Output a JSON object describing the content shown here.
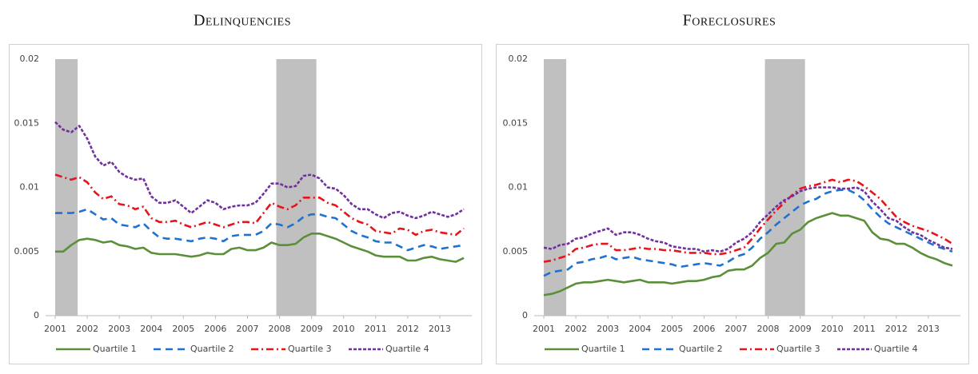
{
  "chart_data": [
    {
      "type": "line",
      "title": "Delinquencies",
      "x": [
        2001,
        2001.25,
        2001.5,
        2001.75,
        2002,
        2002.25,
        2002.5,
        2002.75,
        2003,
        2003.25,
        2003.5,
        2003.75,
        2004,
        2004.25,
        2004.5,
        2004.75,
        2005,
        2005.25,
        2005.5,
        2005.75,
        2006,
        2006.25,
        2006.5,
        2006.75,
        2007,
        2007.25,
        2007.5,
        2007.75,
        2008,
        2008.25,
        2008.5,
        2008.75,
        2009,
        2009.25,
        2009.5,
        2009.75,
        2010,
        2010.25,
        2010.5,
        2010.75,
        2011,
        2011.25,
        2011.5,
        2011.75,
        2012,
        2012.25,
        2012.5,
        2012.75,
        2013,
        2013.25,
        2013.5,
        2013.75
      ],
      "xlim": [
        2000.7,
        2014
      ],
      "xticks": [
        2001,
        2002,
        2003,
        2004,
        2005,
        2006,
        2007,
        2008,
        2009,
        2010,
        2011,
        2012,
        2013
      ],
      "ylim": [
        0,
        0.02
      ],
      "yticks": [
        0,
        0.005,
        0.01,
        0.015,
        0.02
      ],
      "grid": false,
      "recessions": [
        [
          2001,
          2001.7
        ],
        [
          2007.9,
          2009.15
        ]
      ],
      "recession_color": "#c0c0c0",
      "series": [
        {
          "name": "Quartile 1",
          "color": "#5b8f3a",
          "values": [
            0.005,
            0.005,
            0.0055,
            0.0059,
            0.006,
            0.0059,
            0.0057,
            0.0058,
            0.0055,
            0.0054,
            0.0052,
            0.0053,
            0.0049,
            0.0048,
            0.0048,
            0.0048,
            0.0047,
            0.0046,
            0.0047,
            0.0049,
            0.0048,
            0.0048,
            0.0052,
            0.0053,
            0.0051,
            0.0051,
            0.0053,
            0.0057,
            0.0055,
            0.0055,
            0.0056,
            0.0061,
            0.0064,
            0.0064,
            0.0062,
            0.006,
            0.0057,
            0.0054,
            0.0052,
            0.005,
            0.0047,
            0.0046,
            0.0046,
            0.0046,
            0.0043,
            0.0043,
            0.0045,
            0.0046,
            0.0044,
            0.0043,
            0.0042,
            0.0045
          ]
        },
        {
          "name": "Quartile 2",
          "color": "#1f72cf",
          "values": [
            0.008,
            0.008,
            0.008,
            0.0081,
            0.0083,
            0.0079,
            0.0075,
            0.0076,
            0.0071,
            0.007,
            0.0069,
            0.0072,
            0.0066,
            0.0061,
            0.006,
            0.006,
            0.0059,
            0.0058,
            0.006,
            0.0061,
            0.006,
            0.0058,
            0.0062,
            0.0063,
            0.0063,
            0.0063,
            0.0066,
            0.0072,
            0.0071,
            0.0069,
            0.0072,
            0.0077,
            0.0079,
            0.0079,
            0.0077,
            0.0076,
            0.0071,
            0.0066,
            0.0063,
            0.0061,
            0.0058,
            0.0057,
            0.0057,
            0.0054,
            0.0051,
            0.0053,
            0.0055,
            0.0054,
            0.0052,
            0.0053,
            0.0054,
            0.0055
          ]
        },
        {
          "name": "Quartile 3",
          "color": "#e8141c",
          "values": [
            0.011,
            0.0108,
            0.0106,
            0.0108,
            0.0104,
            0.0096,
            0.0091,
            0.0093,
            0.0087,
            0.0086,
            0.0083,
            0.0085,
            0.0076,
            0.0073,
            0.0073,
            0.0074,
            0.0071,
            0.0069,
            0.0071,
            0.0073,
            0.0071,
            0.0069,
            0.0071,
            0.0073,
            0.0073,
            0.0072,
            0.008,
            0.0088,
            0.0085,
            0.0083,
            0.0086,
            0.0092,
            0.0092,
            0.0092,
            0.0088,
            0.0086,
            0.0081,
            0.0076,
            0.0073,
            0.0071,
            0.0066,
            0.0065,
            0.0064,
            0.0068,
            0.0067,
            0.0063,
            0.0066,
            0.0067,
            0.0065,
            0.0064,
            0.0063,
            0.0068
          ]
        },
        {
          "name": "Quartile 4",
          "color": "#7030a0",
          "values": [
            0.0151,
            0.0145,
            0.0143,
            0.0148,
            0.0138,
            0.0124,
            0.0117,
            0.012,
            0.0112,
            0.0108,
            0.0106,
            0.0107,
            0.0093,
            0.0088,
            0.0088,
            0.009,
            0.0085,
            0.008,
            0.0085,
            0.009,
            0.0088,
            0.0083,
            0.0085,
            0.0086,
            0.0086,
            0.0088,
            0.0095,
            0.0103,
            0.0103,
            0.01,
            0.0101,
            0.0109,
            0.011,
            0.0107,
            0.01,
            0.0099,
            0.0094,
            0.0087,
            0.0083,
            0.0083,
            0.0079,
            0.0076,
            0.008,
            0.0081,
            0.0078,
            0.0076,
            0.0078,
            0.0081,
            0.0079,
            0.0077,
            0.0079,
            0.0083
          ]
        }
      ]
    },
    {
      "type": "line",
      "title": "Foreclosures",
      "x": [
        2001,
        2001.25,
        2001.5,
        2001.75,
        2002,
        2002.25,
        2002.5,
        2002.75,
        2003,
        2003.25,
        2003.5,
        2003.75,
        2004,
        2004.25,
        2004.5,
        2004.75,
        2005,
        2005.25,
        2005.5,
        2005.75,
        2006,
        2006.25,
        2006.5,
        2006.75,
        2007,
        2007.25,
        2007.5,
        2007.75,
        2008,
        2008.25,
        2008.5,
        2008.75,
        2009,
        2009.25,
        2009.5,
        2009.75,
        2010,
        2010.25,
        2010.5,
        2010.75,
        2011,
        2011.25,
        2011.5,
        2011.75,
        2012,
        2012.25,
        2012.5,
        2012.75,
        2013,
        2013.25,
        2013.5,
        2013.75
      ],
      "xlim": [
        2000.7,
        2014
      ],
      "xticks": [
        2001,
        2002,
        2003,
        2004,
        2005,
        2006,
        2007,
        2008,
        2009,
        2010,
        2011,
        2012,
        2013
      ],
      "ylim": [
        0,
        0.02
      ],
      "yticks": [
        0,
        0.005,
        0.01,
        0.015,
        0.02
      ],
      "grid": false,
      "recessions": [
        [
          2001,
          2001.7
        ],
        [
          2007.9,
          2009.15
        ]
      ],
      "recession_color": "#c0c0c0",
      "series": [
        {
          "name": "Quartile 1",
          "color": "#5b8f3a",
          "values": [
            0.0016,
            0.0017,
            0.0019,
            0.0022,
            0.0025,
            0.0026,
            0.0026,
            0.0027,
            0.0028,
            0.0027,
            0.0026,
            0.0027,
            0.0028,
            0.0026,
            0.0026,
            0.0026,
            0.0025,
            0.0026,
            0.0027,
            0.0027,
            0.0028,
            0.003,
            0.0031,
            0.0035,
            0.0036,
            0.0036,
            0.0039,
            0.0045,
            0.0049,
            0.0056,
            0.0057,
            0.0064,
            0.0067,
            0.0073,
            0.0076,
            0.0078,
            0.008,
            0.0078,
            0.0078,
            0.0076,
            0.0074,
            0.0065,
            0.006,
            0.0059,
            0.0056,
            0.0056,
            0.0053,
            0.0049,
            0.0046,
            0.0044,
            0.0041,
            0.0039
          ]
        },
        {
          "name": "Quartile 2",
          "color": "#1f72cf",
          "values": [
            0.0031,
            0.0034,
            0.0035,
            0.0036,
            0.0041,
            0.0042,
            0.0044,
            0.0045,
            0.0047,
            0.0044,
            0.0045,
            0.0046,
            0.0044,
            0.0043,
            0.0042,
            0.0041,
            0.004,
            0.0038,
            0.0039,
            0.004,
            0.0041,
            0.004,
            0.0039,
            0.0042,
            0.0046,
            0.0048,
            0.0053,
            0.006,
            0.0065,
            0.0071,
            0.0076,
            0.0081,
            0.0086,
            0.0089,
            0.0091,
            0.0095,
            0.0097,
            0.0098,
            0.0098,
            0.0095,
            0.009,
            0.0083,
            0.0077,
            0.0072,
            0.0069,
            0.0066,
            0.0063,
            0.006,
            0.0057,
            0.0054,
            0.0052,
            0.005
          ]
        },
        {
          "name": "Quartile 3",
          "color": "#e8141c",
          "values": [
            0.0042,
            0.0043,
            0.0045,
            0.0047,
            0.0052,
            0.0053,
            0.0055,
            0.0056,
            0.0056,
            0.0051,
            0.0051,
            0.0052,
            0.0053,
            0.0052,
            0.0052,
            0.0051,
            0.0051,
            0.005,
            0.0049,
            0.0049,
            0.0049,
            0.0048,
            0.0048,
            0.0049,
            0.0051,
            0.0053,
            0.006,
            0.0068,
            0.0075,
            0.0082,
            0.0088,
            0.0094,
            0.0099,
            0.0101,
            0.0102,
            0.0104,
            0.0106,
            0.0104,
            0.0106,
            0.0105,
            0.0101,
            0.0096,
            0.0091,
            0.0084,
            0.0077,
            0.0073,
            0.007,
            0.0068,
            0.0066,
            0.0063,
            0.006,
            0.0056
          ]
        },
        {
          "name": "Quartile 4",
          "color": "#7030a0",
          "values": [
            0.0053,
            0.0052,
            0.0055,
            0.0056,
            0.006,
            0.0061,
            0.0064,
            0.0066,
            0.0068,
            0.0063,
            0.0065,
            0.0065,
            0.0063,
            0.006,
            0.0058,
            0.0057,
            0.0054,
            0.0053,
            0.0052,
            0.0052,
            0.005,
            0.0051,
            0.005,
            0.0052,
            0.0057,
            0.006,
            0.0065,
            0.0073,
            0.0079,
            0.0085,
            0.009,
            0.0093,
            0.0097,
            0.0099,
            0.01,
            0.01,
            0.01,
            0.0099,
            0.0099,
            0.01,
            0.0097,
            0.0089,
            0.0083,
            0.0076,
            0.0074,
            0.0069,
            0.0065,
            0.0063,
            0.0059,
            0.0056,
            0.0053,
            0.0052
          ]
        }
      ]
    }
  ]
}
